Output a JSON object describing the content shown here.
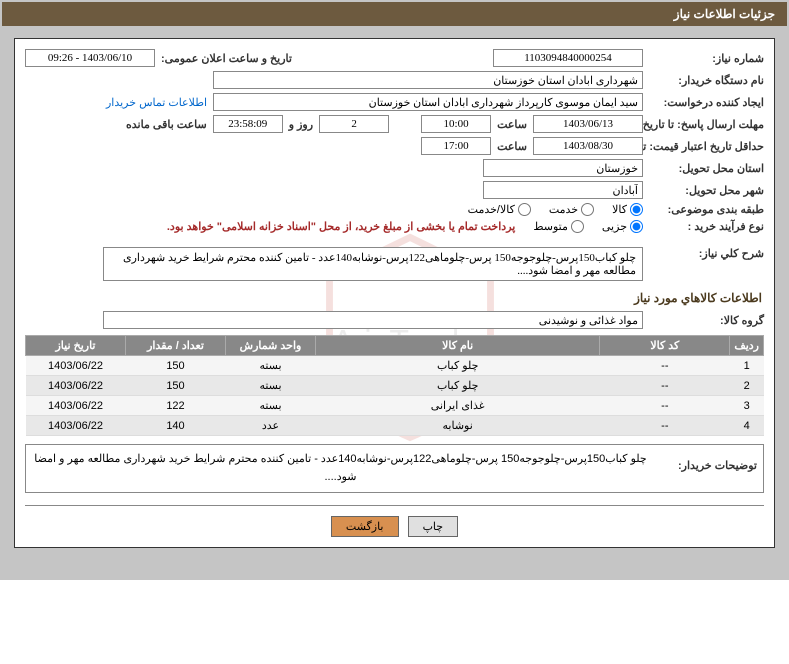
{
  "header": {
    "title": "جزئیات اطلاعات نیاز"
  },
  "fields": {
    "need_no_label": "شماره نیاز:",
    "need_no": "1103094840000254",
    "announce_label": "تاریخ و ساعت اعلان عمومی:",
    "announce": "1403/06/10 - 09:26",
    "buyer_org_label": "نام دستگاه خریدار:",
    "buyer_org": "شهرداری ابادان استان خوزستان",
    "requester_label": "ایجاد کننده درخواست:",
    "requester": "سید ایمان موسوی کارپرداز شهرداری ابادان استان خوزستان",
    "contact_link": "اطلاعات تماس خریدار",
    "deadline_label": "مهلت ارسال پاسخ: تا تاریخ:",
    "deadline_date": "1403/06/13",
    "time_label": "ساعت",
    "deadline_time": "10:00",
    "days_remain": "2",
    "days_remain_label": "روز و",
    "hours_remain": "23:58:09",
    "hours_remain_label": "ساعت باقی مانده",
    "validity_label": "حداقل تاریخ اعتبار قیمت: تا تاریخ:",
    "validity_date": "1403/08/30",
    "validity_time": "17:00",
    "deliver_prov_label": "استان محل تحویل:",
    "deliver_prov": "خوزستان",
    "deliver_city_label": "شهر محل تحویل:",
    "deliver_city": "آبادان",
    "category_label": "طبقه بندی موضوعی:",
    "cat_goods": "کالا",
    "cat_service": "خدمت",
    "cat_both": "کالا/خدمت",
    "process_label": "نوع فرآیند خرید :",
    "proc_minor": "جزیی",
    "proc_medium": "متوسط",
    "payment_note": "پرداخت تمام یا بخشی از مبلغ خرید، از محل \"اسناد خزانه اسلامی\" خواهد بود.",
    "summary_label": "شرح کلي نياز:",
    "summary": "چلو کباب150پرس-چلوجوجه150 پرس-چلوماهی122پرس-نوشابه140عدد - تامین کننده محترم شرایط خرید شهرداری مطالعه مهر و امضا شود....",
    "items_section": "اطلاعات كالاهاي مورد نياز",
    "group_label": "گروه کالا:",
    "group": "مواد غذائی و نوشیدنی",
    "buyer_desc_label": "توضیحات خریدار:",
    "buyer_desc": "چلو کباب150پرس-چلوجوجه150 پرس-چلوماهی122پرس-نوشابه140عدد - تامین کننده محترم شرایط خرید شهرداری مطالعه مهر و امضا شود...."
  },
  "table": {
    "headers": {
      "idx": "ردیف",
      "code": "کد کالا",
      "name": "نام کالا",
      "unit": "واحد شمارش",
      "qty": "تعداد / مقدار",
      "date": "تاریخ نیاز"
    },
    "rows": [
      {
        "idx": "1",
        "code": "--",
        "name": "چلو کباب",
        "unit": "بسته",
        "qty": "150",
        "date": "1403/06/22"
      },
      {
        "idx": "2",
        "code": "--",
        "name": "چلو کباب",
        "unit": "بسته",
        "qty": "150",
        "date": "1403/06/22"
      },
      {
        "idx": "3",
        "code": "--",
        "name": "غذای ایرانی",
        "unit": "بسته",
        "qty": "122",
        "date": "1403/06/22"
      },
      {
        "idx": "4",
        "code": "--",
        "name": "نوشابه",
        "unit": "عدد",
        "qty": "140",
        "date": "1403/06/22"
      }
    ]
  },
  "buttons": {
    "print": "چاپ",
    "back": "بازگشت"
  }
}
